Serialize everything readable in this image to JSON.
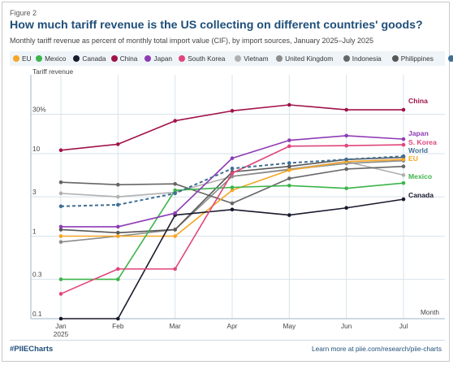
{
  "figure_label": "Figure 2",
  "title": "How much tariff revenue is the US collecting on different countries' goods?",
  "subtitle": "Monthly tariff revenue as percent of monthly total import value (CIF), by import sources, January 2025–July 2025",
  "footer": {
    "hashtag": "#PIIECharts",
    "link_text": "Learn more at piie.com/research/piie-charts"
  },
  "chart_data": {
    "type": "line",
    "ylabel": "Tariff revenue",
    "xlabel": "Month",
    "yscale": "log",
    "ylim": [
      0.1,
      60
    ],
    "ytick_values": [
      0.1,
      0.3,
      1,
      3,
      10,
      30
    ],
    "ytick_labels": [
      "0.1",
      "0.3",
      "1",
      "3",
      "10",
      "30%"
    ],
    "x": [
      "Jan 2025",
      "Feb",
      "Mar",
      "Apr",
      "May",
      "Jun",
      "Jul"
    ],
    "xtick_labels": [
      [
        "Jan",
        "2025"
      ],
      [
        "Feb"
      ],
      [
        "Mar"
      ],
      [
        "Apr"
      ],
      [
        "May"
      ],
      [
        "Jun"
      ],
      [
        "Jul"
      ]
    ],
    "grid": true,
    "legend_position": "top",
    "series": [
      {
        "name": "EU",
        "color": "#f5a623",
        "dashed": false,
        "label": "EU",
        "values": [
          1.0,
          1.0,
          1.0,
          3.6,
          6.3,
          8.0,
          8.5
        ]
      },
      {
        "name": "Mexico",
        "color": "#3cb44b",
        "dashed": false,
        "label": "Mexico",
        "values": [
          0.3,
          0.3,
          3.6,
          3.9,
          4.1,
          3.8,
          4.4
        ]
      },
      {
        "name": "Canada",
        "color": "#1a1a2e",
        "dashed": false,
        "label": "Canada",
        "values": [
          0.1,
          0.1,
          1.8,
          2.1,
          1.8,
          2.2,
          2.8
        ]
      },
      {
        "name": "China",
        "color": "#a0134a",
        "dashed": false,
        "label": "China",
        "values": [
          11.0,
          13.0,
          25.0,
          33.0,
          39.0,
          34.0,
          34.0
        ]
      },
      {
        "name": "Japan",
        "color": "#8e3bb5",
        "dashed": false,
        "label": "Japan",
        "values": [
          1.3,
          1.3,
          1.9,
          8.8,
          14.5,
          16.5,
          15.0
        ]
      },
      {
        "name": "South Korea",
        "color": "#e0457b",
        "dashed": false,
        "label": "S. Korea",
        "values": [
          0.2,
          0.4,
          0.4,
          5.8,
          12.3,
          12.5,
          12.8
        ]
      },
      {
        "name": "Vietnam",
        "color": "#b0b0b0",
        "dashed": false,
        "label": "",
        "values": [
          3.3,
          3.0,
          3.4,
          5.3,
          6.5,
          8.0,
          5.5
        ]
      },
      {
        "name": "United Kingdom",
        "color": "#8c8c8c",
        "dashed": false,
        "label": "",
        "values": [
          0.85,
          1.0,
          1.2,
          5.3,
          6.4,
          7.6,
          8.2
        ]
      },
      {
        "name": "Indonesia",
        "color": "#666666",
        "dashed": false,
        "label": "",
        "values": [
          4.5,
          4.2,
          4.3,
          2.5,
          5.0,
          6.5,
          7.0
        ]
      },
      {
        "name": "Philippines",
        "color": "#575757",
        "dashed": false,
        "label": "",
        "values": [
          1.2,
          1.1,
          1.2,
          6.0,
          7.0,
          8.5,
          9.0
        ]
      },
      {
        "name": "World",
        "color": "#3f6f95",
        "dashed": true,
        "label": "World",
        "values": [
          2.3,
          2.4,
          3.3,
          6.6,
          7.7,
          8.5,
          9.3
        ]
      }
    ]
  }
}
